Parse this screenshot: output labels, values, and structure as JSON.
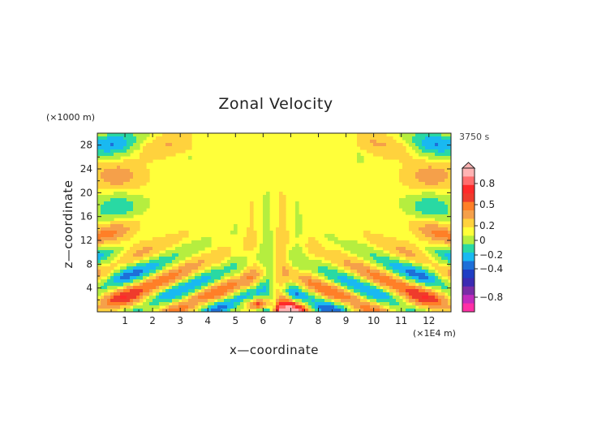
{
  "chart_data": {
    "type": "heatmap",
    "title": "Zonal Velocity",
    "time_label": "3750 s",
    "xlabel": "x—coordinate",
    "ylabel": "z—coordinate",
    "x_unit": "(×1E4 m)",
    "y_unit": "(×1000 m)",
    "xlim": [
      0,
      12.8
    ],
    "ylim": [
      0,
      30
    ],
    "x_ticks": [
      1,
      2,
      3,
      4,
      5,
      6,
      7,
      8,
      9,
      10,
      11,
      12
    ],
    "y_ticks": [
      4,
      8,
      12,
      16,
      20,
      24,
      28
    ],
    "colorbar": {
      "tick_values": [
        0.8,
        0.5,
        0.2,
        0,
        -0.2,
        -0.4,
        -0.8
      ],
      "tick_labels": [
        "0.8",
        "0.5",
        "0.2",
        "0",
        "−0.2",
        "−0.4",
        "−0.8"
      ],
      "levels": [
        {
          "value": 0.9,
          "color": "#ffb3b3"
        },
        {
          "value": 0.7,
          "color": "#ff6e6e"
        },
        {
          "value": 0.5,
          "color": "#ff2a2a"
        },
        {
          "value": 0.4,
          "color": "#ef3b2c"
        },
        {
          "value": 0.3,
          "color": "#ff7f27"
        },
        {
          "value": 0.2,
          "color": "#f5a04a"
        },
        {
          "value": 0.1,
          "color": "#ffd23d"
        },
        {
          "value": 0.0,
          "color": "#ffff3a"
        },
        {
          "value": -0.1,
          "color": "#b5ee3f"
        },
        {
          "value": -0.2,
          "color": "#29d9a3"
        },
        {
          "value": -0.3,
          "color": "#19b9f1"
        },
        {
          "value": -0.4,
          "color": "#1e6fd8"
        },
        {
          "value": -0.5,
          "color": "#1f3ec4"
        },
        {
          "value": -0.6,
          "color": "#3b2bb3"
        },
        {
          "value": -0.7,
          "color": "#7a2ca7"
        },
        {
          "value": -0.8,
          "color": "#c22bbd"
        },
        {
          "value": -0.9,
          "color": "#ff2fa6"
        }
      ]
    }
  }
}
